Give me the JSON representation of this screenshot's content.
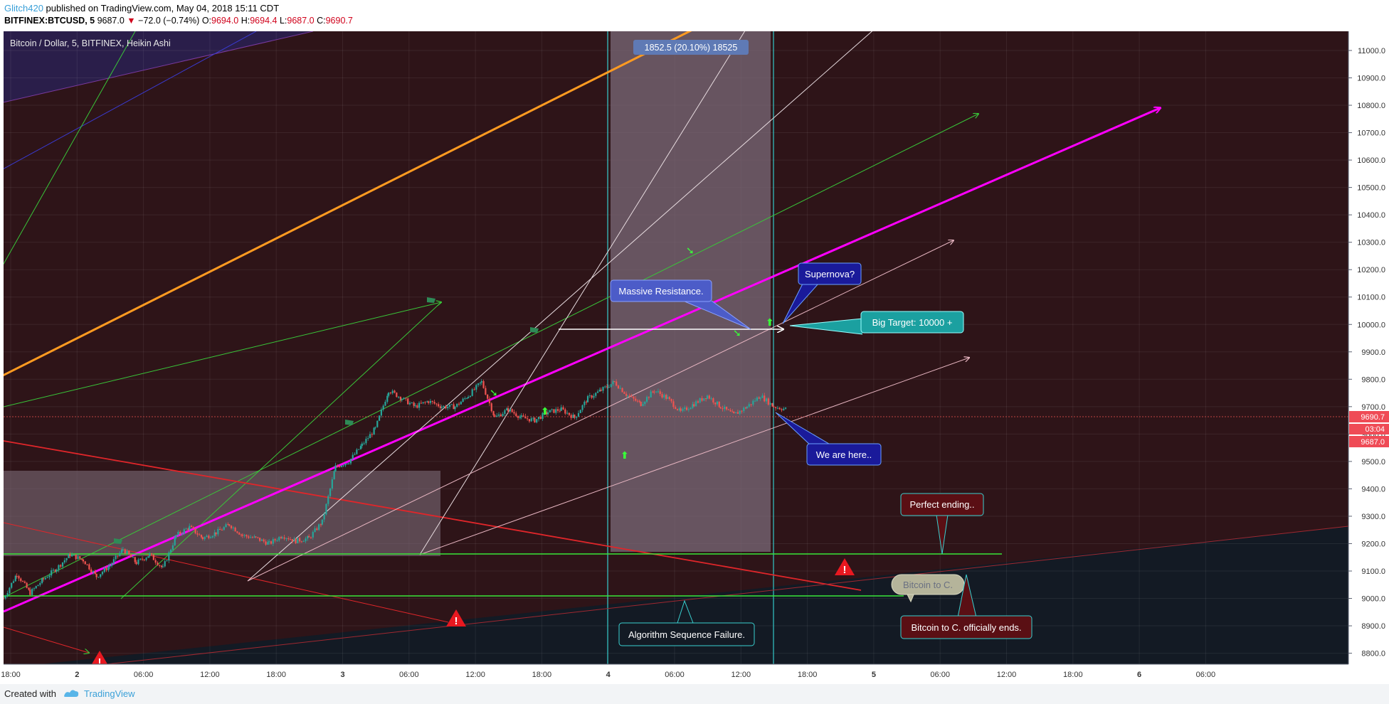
{
  "header": {
    "author": "Glitch420",
    "published": " published on TradingView.com, May 04, 2018 15:11 CDT",
    "symbol": "BITFINEX:BTCUSD, 5",
    "last": "9687.0",
    "change": "−72.0 (−0.74%)",
    "open_label": "O:",
    "open": "9694.0",
    "high_label": "H:",
    "high": "9694.4",
    "low_label": "L:",
    "low": "9687.0",
    "close_label": "C:",
    "close": "9690.7"
  },
  "chart_title": "Bitcoin / Dollar, 5, BITFINEX, Heikin Ashi",
  "footer": {
    "created": "Created with",
    "brand": "TradingView"
  },
  "colors": {
    "bg_red": "#2e1418",
    "bg_dark": "#131a24",
    "box": "#7b6a78",
    "magenta": "#ff00ff",
    "orange": "#ff9b21",
    "green_line": "#39e639",
    "candle_up": "#26a69a",
    "candle_down": "#ef5350",
    "price_tag": "#ef4b56"
  },
  "chart_data": {
    "type": "candlestick",
    "title": "Bitcoin / Dollar, 5, BITFINEX, Heikin Ashi",
    "y_axis_ticks": [
      "11000.0",
      "10900.0",
      "10800.0",
      "10700.0",
      "10600.0",
      "10500.0",
      "10400.0",
      "10300.0",
      "10200.0",
      "10100.0",
      "10000.0",
      "9900.0",
      "9800.0",
      "9700.0",
      "9600.0",
      "9500.0",
      "9400.0",
      "9300.0",
      "9200.0",
      "9100.0",
      "9000.0",
      "8900.0",
      "8800.0"
    ],
    "x_axis_ticks": [
      "18:00",
      "2",
      "06:00",
      "12:00",
      "18:00",
      "3",
      "06:00",
      "12:00",
      "18:00",
      "4",
      "06:00",
      "12:00",
      "18:00",
      "5",
      "06:00",
      "12:00",
      "18:00",
      "6",
      "06:00"
    ],
    "ylim": [
      8760,
      11070
    ],
    "price_labels": {
      "upper": "9690.7",
      "time": "03:04",
      "lower": "9687.0"
    },
    "measure_label": "1852.5 (20.10%) 18525",
    "series": [
      {
        "values": [
          [
            0,
            9000
          ],
          [
            0.4,
            9090
          ],
          [
            0.8,
            9020
          ],
          [
            1.2,
            9070
          ],
          [
            1.6,
            9110
          ],
          [
            2,
            9160
          ],
          [
            2.4,
            9140
          ],
          [
            2.8,
            9080
          ],
          [
            3.2,
            9120
          ],
          [
            3.6,
            9180
          ],
          [
            4,
            9130
          ],
          [
            4.4,
            9160
          ],
          [
            4.8,
            9110
          ],
          [
            5.2,
            9230
          ],
          [
            5.6,
            9260
          ],
          [
            6,
            9220
          ],
          [
            6.4,
            9240
          ],
          [
            6.8,
            9270
          ],
          [
            7.2,
            9230
          ],
          [
            7.6,
            9220
          ],
          [
            8,
            9200
          ],
          [
            8.4,
            9230
          ],
          [
            8.8,
            9210
          ],
          [
            9.2,
            9220
          ],
          [
            9.6,
            9280
          ],
          [
            10,
            9480
          ],
          [
            10.4,
            9500
          ],
          [
            10.8,
            9560
          ],
          [
            11.2,
            9620
          ],
          [
            11.6,
            9760
          ],
          [
            12,
            9730
          ],
          [
            12.4,
            9700
          ],
          [
            12.8,
            9720
          ],
          [
            13.2,
            9700
          ],
          [
            13.6,
            9700
          ],
          [
            14,
            9740
          ],
          [
            14.4,
            9790
          ],
          [
            14.8,
            9660
          ],
          [
            15.2,
            9690
          ],
          [
            15.6,
            9660
          ],
          [
            16,
            9650
          ],
          [
            16.4,
            9680
          ],
          [
            16.8,
            9690
          ],
          [
            17.2,
            9660
          ],
          [
            17.6,
            9730
          ],
          [
            18,
            9760
          ],
          [
            18.4,
            9790
          ],
          [
            18.8,
            9740
          ],
          [
            19.2,
            9710
          ],
          [
            19.6,
            9760
          ],
          [
            20,
            9730
          ],
          [
            20.4,
            9680
          ],
          [
            20.8,
            9710
          ],
          [
            21.2,
            9740
          ],
          [
            21.6,
            9700
          ],
          [
            22,
            9670
          ],
          [
            22.4,
            9700
          ],
          [
            22.8,
            9740
          ],
          [
            23.2,
            9700
          ],
          [
            23.6,
            9690
          ]
        ]
      }
    ]
  },
  "annotations": {
    "massive_resistance": "Massive Resistance.",
    "supernova": "Supernova?",
    "big_target": "Big Target:  10000 +",
    "we_are_here": "We are here..",
    "perfect_ending": "Perfect ending..",
    "bitcoin_to_c": "Bitcoin to C.",
    "officially_ends": "Bitcoin to C. officially ends.",
    "algorithm_failure": "Algorithm Sequence Failure."
  }
}
